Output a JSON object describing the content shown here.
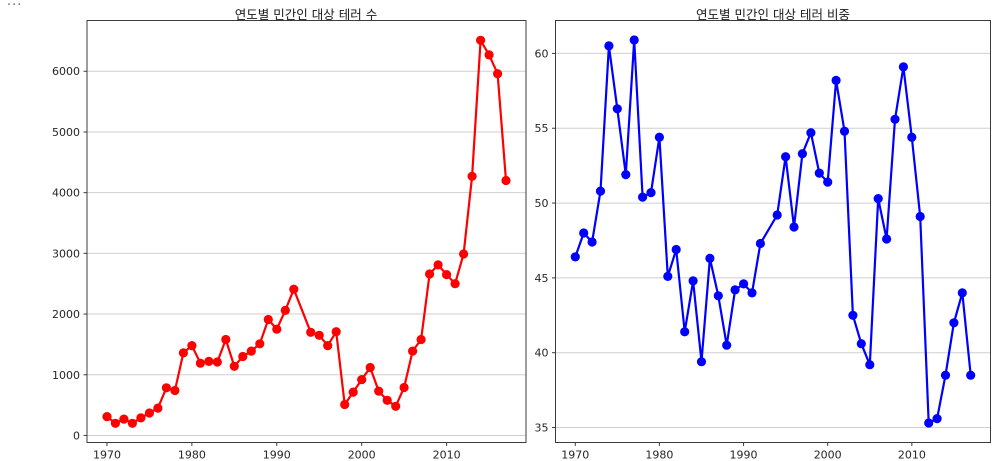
{
  "page": {
    "corner_ellipsis": "...",
    "background": "#ffffff"
  },
  "chart_data": [
    {
      "type": "line",
      "title": "연도별 민간인 대상 테러 수",
      "series_name": "terror-count-civilian-targets",
      "color": "#ff0000",
      "marker": "circle",
      "grid": "horizontal",
      "legend": "none",
      "xlabel": "",
      "ylabel": "",
      "xlim": [
        1967.65,
        2019.35
      ],
      "ylim": [
        -116,
        6836
      ],
      "xticks": [
        1970,
        1980,
        1990,
        2000,
        2010
      ],
      "yticks": [
        0,
        1000,
        2000,
        3000,
        4000,
        5000,
        6000
      ],
      "x": [
        1970,
        1971,
        1972,
        1973,
        1974,
        1975,
        1976,
        1977,
        1978,
        1979,
        1980,
        1981,
        1982,
        1983,
        1984,
        1985,
        1986,
        1987,
        1988,
        1989,
        1990,
        1991,
        1992,
        1994,
        1995,
        1996,
        1997,
        1998,
        1999,
        2000,
        2001,
        2002,
        2003,
        2004,
        2005,
        2006,
        2007,
        2008,
        2009,
        2010,
        2011,
        2012,
        2013,
        2014,
        2015,
        2016,
        2017
      ],
      "y": [
        310,
        200,
        270,
        200,
        290,
        370,
        450,
        785,
        740,
        1360,
        1480,
        1190,
        1220,
        1210,
        1580,
        1140,
        1300,
        1390,
        1510,
        1910,
        1750,
        2060,
        2410,
        1700,
        1650,
        1480,
        1710,
        510,
        715,
        920,
        1120,
        730,
        580,
        480,
        790,
        1390,
        1580,
        2660,
        2810,
        2650,
        2500,
        2990,
        4270,
        6510,
        6270,
        5960,
        4200
      ]
    },
    {
      "type": "line",
      "title": "연도별 민간인 대상 테러 비중",
      "series_name": "terror-share-civilian-targets-percent",
      "color": "#0000ff",
      "marker": "circle",
      "grid": "horizontal",
      "legend": "none",
      "xlabel": "",
      "ylabel": "",
      "xlim": [
        1967.65,
        2019.35
      ],
      "ylim": [
        34.0,
        62.2
      ],
      "xticks": [
        1970,
        1980,
        1990,
        2000,
        2010
      ],
      "yticks": [
        35,
        40,
        45,
        50,
        55,
        60
      ],
      "x": [
        1970,
        1971,
        1972,
        1973,
        1974,
        1975,
        1976,
        1977,
        1978,
        1979,
        1980,
        1981,
        1982,
        1983,
        1984,
        1985,
        1986,
        1987,
        1988,
        1989,
        1990,
        1991,
        1992,
        1994,
        1995,
        1996,
        1997,
        1998,
        1999,
        2000,
        2001,
        2002,
        2003,
        2004,
        2005,
        2006,
        2007,
        2008,
        2009,
        2010,
        2011,
        2012,
        2013,
        2014,
        2015,
        2016,
        2017
      ],
      "y": [
        46.4,
        48.0,
        47.4,
        50.8,
        60.5,
        56.3,
        51.9,
        60.9,
        50.4,
        50.7,
        54.4,
        45.1,
        46.9,
        41.4,
        44.8,
        39.4,
        46.3,
        43.8,
        40.5,
        44.2,
        44.6,
        44.0,
        47.3,
        49.2,
        53.1,
        48.4,
        53.3,
        54.7,
        52.0,
        51.4,
        58.2,
        54.8,
        42.5,
        40.6,
        39.2,
        50.3,
        47.6,
        55.6,
        59.1,
        54.4,
        49.1,
        35.3,
        35.6,
        38.5,
        42.0,
        44.0,
        38.5
      ]
    }
  ]
}
